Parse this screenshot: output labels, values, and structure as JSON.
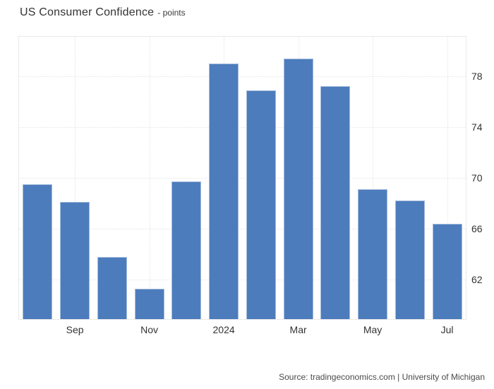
{
  "header": {
    "title": "US Consumer Confidence",
    "subtitle": "- points"
  },
  "source_text": "Source: tradingeconomics.com | University of Michigan",
  "colors": {
    "bar_fill": "#4d7cbc",
    "bar_border": "#a3bcdd",
    "grid": "#e5e5e5",
    "plot_border": "#e9e9e9",
    "axis_text": "#333333",
    "title_text": "#333333",
    "source_text": "#4a4a4a"
  },
  "chart_data": {
    "type": "bar",
    "title": "US Consumer Confidence",
    "unit": "points",
    "xlabel": "",
    "ylabel": "",
    "x_tick_labels": [
      "",
      "Sep",
      "",
      "Nov",
      "",
      "2024",
      "",
      "Mar",
      "",
      "May",
      "",
      "Jul"
    ],
    "values": [
      69.5,
      68.1,
      63.8,
      61.3,
      69.7,
      79.0,
      76.9,
      79.4,
      77.2,
      69.1,
      68.2,
      66.4
    ],
    "y_ticks": [
      62,
      66,
      70,
      74,
      78
    ],
    "ylim": [
      58.9,
      81.1
    ],
    "y_axis_side": "right",
    "grid": "dotted",
    "legend": "none",
    "source": "tradingeconomics.com | University of Michigan"
  }
}
